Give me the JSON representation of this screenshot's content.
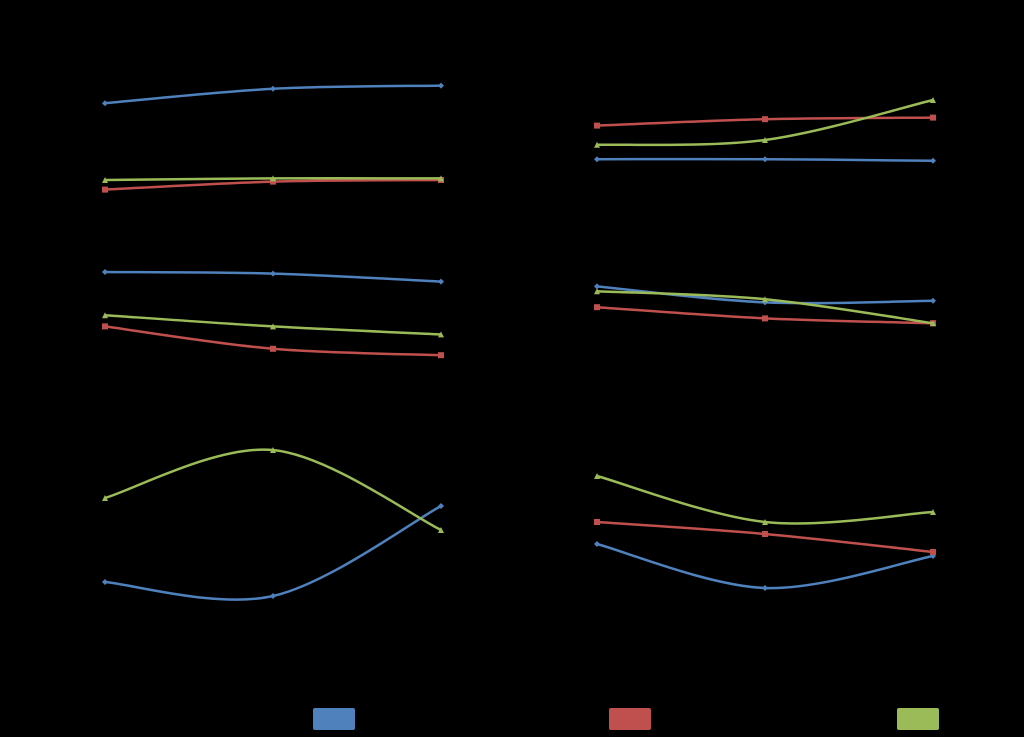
{
  "chart_data": [
    {
      "type": "line",
      "smooth": true,
      "legend": "bottom",
      "categories": [
        null,
        null,
        null
      ],
      "ylim": [
        0,
        100
      ],
      "series": [
        {
          "color": "#4f81bd",
          "values": [
            73,
            82,
            84
          ]
        },
        {
          "color": "#c0504d",
          "values": [
            19,
            24,
            25
          ]
        },
        {
          "color": "#9bbb59",
          "values": [
            25,
            26,
            26
          ]
        }
      ]
    },
    {
      "type": "line",
      "smooth": true,
      "legend": "bottom",
      "categories": [
        null,
        null,
        null
      ],
      "ylim": [
        0,
        100
      ],
      "series": [
        {
          "color": "#4f81bd",
          "values": [
            38,
            38,
            37
          ]
        },
        {
          "color": "#c0504d",
          "values": [
            59,
            63,
            64
          ]
        },
        {
          "color": "#9bbb59",
          "values": [
            47,
            50,
            75
          ]
        }
      ]
    },
    {
      "type": "line",
      "smooth": true,
      "legend": "bottom",
      "categories": [
        null,
        null,
        null
      ],
      "ylim": [
        0,
        100
      ],
      "series": [
        {
          "color": "#4f81bd",
          "values": [
            80,
            79,
            74
          ]
        },
        {
          "color": "#c0504d",
          "values": [
            46,
            32,
            28
          ]
        },
        {
          "color": "#9bbb59",
          "values": [
            53,
            46,
            41
          ]
        }
      ]
    },
    {
      "type": "line",
      "smooth": true,
      "legend": "bottom",
      "categories": [
        null,
        null,
        null
      ],
      "ylim": [
        0,
        100
      ],
      "series": [
        {
          "color": "#4f81bd",
          "values": [
            71,
            61,
            62
          ]
        },
        {
          "color": "#c0504d",
          "values": [
            58,
            51,
            48
          ]
        },
        {
          "color": "#9bbb59",
          "values": [
            68,
            63,
            48
          ]
        }
      ]
    },
    {
      "type": "line",
      "smooth": true,
      "legend": "bottom",
      "categories": [
        null,
        null,
        null
      ],
      "ylim": [
        0,
        100
      ],
      "series": [
        {
          "color": "#4f81bd",
          "values": [
            19,
            12,
            57
          ]
        },
        {
          "color": "#c0504d",
          "values": [
            null,
            null,
            null
          ]
        },
        {
          "color": "#9bbb59",
          "values": [
            61,
            85,
            45
          ]
        }
      ]
    },
    {
      "type": "line",
      "smooth": true,
      "legend": "bottom",
      "categories": [
        null,
        null,
        null
      ],
      "ylim": [
        0,
        100
      ],
      "series": [
        {
          "color": "#4f81bd",
          "values": [
            38,
            16,
            32
          ]
        },
        {
          "color": "#c0504d",
          "values": [
            49,
            43,
            34
          ]
        },
        {
          "color": "#9bbb59",
          "values": [
            72,
            49,
            54
          ]
        }
      ]
    }
  ]
}
